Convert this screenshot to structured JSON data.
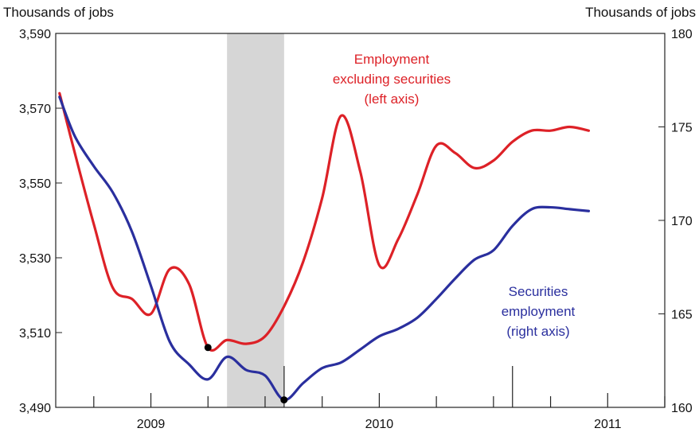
{
  "chart_data": {
    "type": "line",
    "y_left_label": "Thousands of jobs",
    "y_right_label": "Thousands of jobs",
    "y_left_ticks": [
      "3,490",
      "3,510",
      "3,530",
      "3,550",
      "3,570",
      "3,590"
    ],
    "y_right_ticks": [
      "160",
      "165",
      "170",
      "175",
      "180"
    ],
    "x_ticks": [
      "2009",
      "2010",
      "2011"
    ],
    "ylim_left": [
      3490,
      3590
    ],
    "ylim_right": [
      160,
      180
    ],
    "x_range": [
      "2008-08",
      "2011-04"
    ],
    "grid": false,
    "shaded_region": {
      "start": "2009-05",
      "end": "2009-08"
    },
    "series": [
      {
        "name": "Employment excluding securities (left axis)",
        "label_lines": [
          "Employment",
          "excluding securities",
          "(left axis)"
        ],
        "axis": "left",
        "color": "#dd2127",
        "x": [
          2008.6,
          2008.667,
          2008.75,
          2008.833,
          2008.917,
          2009.0,
          2009.083,
          2009.167,
          2009.25,
          2009.333,
          2009.417,
          2009.5,
          2009.583,
          2009.667,
          2009.75,
          2009.833,
          2009.917,
          2010.0,
          2010.083,
          2010.167,
          2010.25,
          2010.333,
          2010.417,
          2010.5,
          2010.583,
          2010.667,
          2010.75,
          2010.833,
          2010.917
        ],
        "values": [
          3574,
          3558,
          3539,
          3522,
          3519,
          3515,
          3527,
          3523,
          3506,
          3508,
          3507,
          3509,
          3517,
          3529,
          3546,
          3568,
          3553,
          3528,
          3535,
          3547,
          3560,
          3558,
          3554,
          3556,
          3561,
          3564,
          3564,
          3565,
          3564
        ]
      },
      {
        "name": "Securities employment (right axis)",
        "label_lines": [
          "Securities",
          "employment",
          "(right axis)"
        ],
        "axis": "right",
        "color": "#2a2f9e",
        "x": [
          2008.6,
          2008.667,
          2008.75,
          2008.833,
          2008.917,
          2009.0,
          2009.083,
          2009.167,
          2009.25,
          2009.333,
          2009.417,
          2009.5,
          2009.583,
          2009.667,
          2009.75,
          2009.833,
          2009.917,
          2010.0,
          2010.083,
          2010.167,
          2010.25,
          2010.333,
          2010.417,
          2010.5,
          2010.583,
          2010.667,
          2010.75,
          2010.833,
          2010.917
        ],
        "values": [
          176.6,
          174.5,
          172.9,
          171.5,
          169.4,
          166.5,
          163.5,
          162.3,
          161.5,
          162.7,
          162.0,
          161.7,
          160.4,
          161.3,
          162.1,
          162.4,
          163.1,
          163.8,
          164.2,
          164.8,
          165.8,
          166.9,
          167.9,
          168.4,
          169.7,
          170.6,
          170.7,
          170.6,
          170.5
        ]
      }
    ],
    "markers": [
      {
        "series": 0,
        "x": 2009.25
      },
      {
        "series": 1,
        "x": 2009.583
      }
    ]
  }
}
